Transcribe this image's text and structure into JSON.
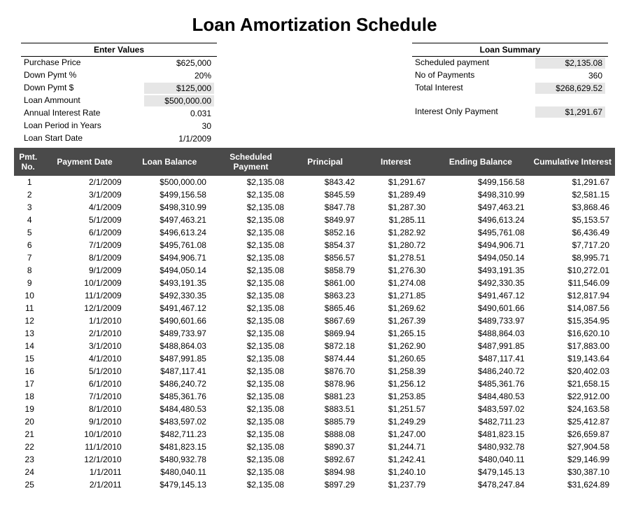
{
  "title": "Loan Amortization Schedule",
  "enter_values": {
    "header": "Enter Values",
    "rows": [
      {
        "label": "Purchase Price",
        "value": "$625,000",
        "shaded": false
      },
      {
        "label": "Down Pymt %",
        "value": "20%",
        "shaded": false
      },
      {
        "label": "Down Pymt $",
        "value": "$125,000",
        "shaded": true
      },
      {
        "label": "Loan Ammount",
        "value": "$500,000.00",
        "shaded": true
      },
      {
        "label": "Annual Interest Rate",
        "value": "0.031",
        "shaded": false
      },
      {
        "label": "Loan Period in Years",
        "value": "30",
        "shaded": false
      },
      {
        "label": "Loan Start Date",
        "value": "1/1/2009",
        "shaded": false
      }
    ]
  },
  "loan_summary": {
    "header": "Loan Summary",
    "rows": [
      {
        "label": "Scheduled payment",
        "value": "$2,135.08",
        "shaded": true
      },
      {
        "label": "No of Payments",
        "value": "360",
        "shaded": false
      },
      {
        "label": "Total Interest",
        "value": "$268,629.52",
        "shaded": true
      },
      {
        "label": "",
        "value": "",
        "shaded": false,
        "spacer": true
      },
      {
        "label": "Interest Only Payment",
        "value": "$1,291.67",
        "shaded": true
      }
    ]
  },
  "schedule": {
    "headers": {
      "pmt": "Pmt. No.",
      "date": "Payment Date",
      "balance": "Loan Balance",
      "scheduled": "Scheduled Payment",
      "principal": "Principal",
      "interest": "Interest",
      "ending": "Ending Balance",
      "cumulative": "Cumulative Interest"
    },
    "rows": [
      {
        "no": "1",
        "date": "2/1/2009",
        "bal": "$500,000.00",
        "sched": "$2,135.08",
        "prin": "$843.42",
        "int": "$1,291.67",
        "end": "$499,156.58",
        "cum": "$1,291.67"
      },
      {
        "no": "2",
        "date": "3/1/2009",
        "bal": "$499,156.58",
        "sched": "$2,135.08",
        "prin": "$845.59",
        "int": "$1,289.49",
        "end": "$498,310.99",
        "cum": "$2,581.15"
      },
      {
        "no": "3",
        "date": "4/1/2009",
        "bal": "$498,310.99",
        "sched": "$2,135.08",
        "prin": "$847.78",
        "int": "$1,287.30",
        "end": "$497,463.21",
        "cum": "$3,868.46"
      },
      {
        "no": "4",
        "date": "5/1/2009",
        "bal": "$497,463.21",
        "sched": "$2,135.08",
        "prin": "$849.97",
        "int": "$1,285.11",
        "end": "$496,613.24",
        "cum": "$5,153.57"
      },
      {
        "no": "5",
        "date": "6/1/2009",
        "bal": "$496,613.24",
        "sched": "$2,135.08",
        "prin": "$852.16",
        "int": "$1,282.92",
        "end": "$495,761.08",
        "cum": "$6,436.49"
      },
      {
        "no": "6",
        "date": "7/1/2009",
        "bal": "$495,761.08",
        "sched": "$2,135.08",
        "prin": "$854.37",
        "int": "$1,280.72",
        "end": "$494,906.71",
        "cum": "$7,717.20"
      },
      {
        "no": "7",
        "date": "8/1/2009",
        "bal": "$494,906.71",
        "sched": "$2,135.08",
        "prin": "$856.57",
        "int": "$1,278.51",
        "end": "$494,050.14",
        "cum": "$8,995.71"
      },
      {
        "no": "8",
        "date": "9/1/2009",
        "bal": "$494,050.14",
        "sched": "$2,135.08",
        "prin": "$858.79",
        "int": "$1,276.30",
        "end": "$493,191.35",
        "cum": "$10,272.01"
      },
      {
        "no": "9",
        "date": "10/1/2009",
        "bal": "$493,191.35",
        "sched": "$2,135.08",
        "prin": "$861.00",
        "int": "$1,274.08",
        "end": "$492,330.35",
        "cum": "$11,546.09"
      },
      {
        "no": "10",
        "date": "11/1/2009",
        "bal": "$492,330.35",
        "sched": "$2,135.08",
        "prin": "$863.23",
        "int": "$1,271.85",
        "end": "$491,467.12",
        "cum": "$12,817.94"
      },
      {
        "no": "11",
        "date": "12/1/2009",
        "bal": "$491,467.12",
        "sched": "$2,135.08",
        "prin": "$865.46",
        "int": "$1,269.62",
        "end": "$490,601.66",
        "cum": "$14,087.56"
      },
      {
        "no": "12",
        "date": "1/1/2010",
        "bal": "$490,601.66",
        "sched": "$2,135.08",
        "prin": "$867.69",
        "int": "$1,267.39",
        "end": "$489,733.97",
        "cum": "$15,354.95"
      },
      {
        "no": "13",
        "date": "2/1/2010",
        "bal": "$489,733.97",
        "sched": "$2,135.08",
        "prin": "$869.94",
        "int": "$1,265.15",
        "end": "$488,864.03",
        "cum": "$16,620.10"
      },
      {
        "no": "14",
        "date": "3/1/2010",
        "bal": "$488,864.03",
        "sched": "$2,135.08",
        "prin": "$872.18",
        "int": "$1,262.90",
        "end": "$487,991.85",
        "cum": "$17,883.00"
      },
      {
        "no": "15",
        "date": "4/1/2010",
        "bal": "$487,991.85",
        "sched": "$2,135.08",
        "prin": "$874.44",
        "int": "$1,260.65",
        "end": "$487,117.41",
        "cum": "$19,143.64"
      },
      {
        "no": "16",
        "date": "5/1/2010",
        "bal": "$487,117.41",
        "sched": "$2,135.08",
        "prin": "$876.70",
        "int": "$1,258.39",
        "end": "$486,240.72",
        "cum": "$20,402.03"
      },
      {
        "no": "17",
        "date": "6/1/2010",
        "bal": "$486,240.72",
        "sched": "$2,135.08",
        "prin": "$878.96",
        "int": "$1,256.12",
        "end": "$485,361.76",
        "cum": "$21,658.15"
      },
      {
        "no": "18",
        "date": "7/1/2010",
        "bal": "$485,361.76",
        "sched": "$2,135.08",
        "prin": "$881.23",
        "int": "$1,253.85",
        "end": "$484,480.53",
        "cum": "$22,912.00"
      },
      {
        "no": "19",
        "date": "8/1/2010",
        "bal": "$484,480.53",
        "sched": "$2,135.08",
        "prin": "$883.51",
        "int": "$1,251.57",
        "end": "$483,597.02",
        "cum": "$24,163.58"
      },
      {
        "no": "20",
        "date": "9/1/2010",
        "bal": "$483,597.02",
        "sched": "$2,135.08",
        "prin": "$885.79",
        "int": "$1,249.29",
        "end": "$482,711.23",
        "cum": "$25,412.87"
      },
      {
        "no": "21",
        "date": "10/1/2010",
        "bal": "$482,711.23",
        "sched": "$2,135.08",
        "prin": "$888.08",
        "int": "$1,247.00",
        "end": "$481,823.15",
        "cum": "$26,659.87"
      },
      {
        "no": "22",
        "date": "11/1/2010",
        "bal": "$481,823.15",
        "sched": "$2,135.08",
        "prin": "$890.37",
        "int": "$1,244.71",
        "end": "$480,932.78",
        "cum": "$27,904.58"
      },
      {
        "no": "23",
        "date": "12/1/2010",
        "bal": "$480,932.78",
        "sched": "$2,135.08",
        "prin": "$892.67",
        "int": "$1,242.41",
        "end": "$480,040.11",
        "cum": "$29,146.99"
      },
      {
        "no": "24",
        "date": "1/1/2011",
        "bal": "$480,040.11",
        "sched": "$2,135.08",
        "prin": "$894.98",
        "int": "$1,240.10",
        "end": "$479,145.13",
        "cum": "$30,387.10"
      },
      {
        "no": "25",
        "date": "2/1/2011",
        "bal": "$479,145.13",
        "sched": "$2,135.08",
        "prin": "$897.29",
        "int": "$1,237.79",
        "end": "$478,247.84",
        "cum": "$31,624.89"
      }
    ]
  },
  "style": {
    "table_header_bg": "#4a4a4a",
    "table_header_fg": "#ffffff",
    "shaded_bg": "#e6e6e6",
    "title_fontsize": 26,
    "body_fontsize": 12
  }
}
